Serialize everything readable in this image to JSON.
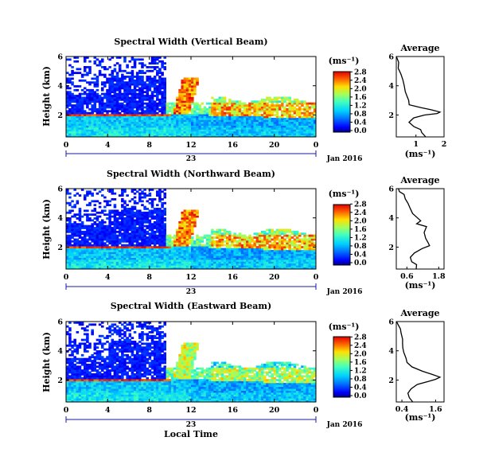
{
  "figure": {
    "xlabel": "Local Time",
    "date_label": "Jan 2016",
    "day_label": "23",
    "ylabel": "Height (km)",
    "avg_title": "Average",
    "avg_xlabel": "(ms⁻¹)",
    "cbar_unit": "(ms⁻¹)"
  },
  "chart_data": [
    {
      "type": "heatmap",
      "title": "Spectral Width (Vertical Beam)",
      "xlabel": "Local Time",
      "ylabel": "Height (km)",
      "x_ticks": [
        "0",
        "4",
        "8",
        "12",
        "16",
        "20",
        "0"
      ],
      "y_ticks": [
        "2",
        "4",
        "6"
      ],
      "xlim": [
        0,
        24
      ],
      "ylim": [
        0.5,
        6
      ],
      "colorbar": {
        "label": "(ms⁻¹)",
        "ticks": [
          "0.0",
          "0.4",
          "0.8",
          "1.2",
          "1.6",
          "2.0",
          "2.4",
          "2.8"
        ],
        "range": [
          0,
          2.8
        ]
      },
      "description_values": {
        "low_layer_width": 0.8,
        "high_layer_width": 2.6,
        "peak_height_km": 2.1
      },
      "average": {
        "title": "Average",
        "xlabel": "(ms⁻¹)",
        "x_ticks": [
          "1",
          "2"
        ],
        "y_ticks": [
          "2",
          "4",
          "6"
        ],
        "xlim": [
          0.3,
          2.0
        ],
        "ylim": [
          0.5,
          6
        ],
        "profile_x": [
          1.3,
          1.25,
          1.2,
          0.95,
          0.75,
          0.9,
          1.3,
          1.75,
          1.9,
          1.6,
          1.2,
          0.8,
          0.7,
          0.72,
          0.65,
          0.6,
          0.55,
          0.45,
          0.4,
          0.35,
          0.3
        ],
        "profile_h": [
          0.5,
          0.8,
          1.0,
          1.2,
          1.5,
          1.8,
          2.0,
          2.1,
          2.2,
          2.35,
          2.5,
          2.7,
          3.0,
          3.3,
          3.6,
          4.0,
          4.4,
          4.8,
          5.2,
          5.6,
          6.0
        ]
      }
    },
    {
      "type": "heatmap",
      "title": "Spectral Width (Northward Beam)",
      "xlabel": "Local Time",
      "ylabel": "Height (km)",
      "x_ticks": [
        "0",
        "4",
        "8",
        "12",
        "16",
        "20",
        "0"
      ],
      "y_ticks": [
        "2",
        "4",
        "6"
      ],
      "xlim": [
        0,
        24
      ],
      "ylim": [
        0.5,
        6
      ],
      "colorbar": {
        "label": "(ms⁻¹)",
        "ticks": [
          "0.0",
          "0.4",
          "0.8",
          "1.2",
          "1.6",
          "2.0",
          "2.4",
          "2.8"
        ],
        "range": [
          0,
          2.8
        ]
      },
      "average": {
        "title": "Average",
        "xlabel": "(ms⁻¹)",
        "x_ticks": [
          "0.6",
          "1.8"
        ],
        "y_ticks": [
          "2",
          "4",
          "6"
        ],
        "xlim": [
          0.2,
          2.0
        ],
        "ylim": [
          0.5,
          6
        ],
        "profile_x": [
          0.9,
          1.0,
          0.8,
          0.75,
          0.9,
          1.2,
          1.5,
          1.4,
          1.3,
          1.25,
          1.3,
          1.0,
          1.15,
          0.95,
          0.8,
          0.75,
          0.6,
          0.55,
          0.45,
          0.35,
          0.25
        ],
        "profile_h": [
          0.5,
          0.8,
          1.0,
          1.3,
          1.6,
          1.9,
          2.1,
          2.3,
          2.6,
          3.0,
          3.4,
          3.6,
          3.8,
          4.0,
          4.3,
          4.6,
          5.0,
          5.3,
          5.6,
          5.8,
          6.0
        ]
      }
    },
    {
      "type": "heatmap",
      "title": "Spectral Width (Eastward Beam)",
      "xlabel": "Local Time",
      "ylabel": "Height (km)",
      "x_ticks": [
        "0",
        "4",
        "8",
        "12",
        "16",
        "20",
        "0"
      ],
      "y_ticks": [
        "2",
        "4",
        "6"
      ],
      "xlim": [
        0,
        24
      ],
      "ylim": [
        0.5,
        6
      ],
      "colorbar": {
        "label": "(ms⁻¹)",
        "ticks": [
          "0.0",
          "0.4",
          "0.8",
          "1.2",
          "1.6",
          "2.0",
          "2.4",
          "2.8"
        ],
        "range": [
          0,
          2.8
        ]
      },
      "average": {
        "title": "Average",
        "xlabel": "(ms⁻¹)",
        "x_ticks": [
          "0.4",
          "1.6"
        ],
        "y_ticks": [
          "2",
          "4",
          "6"
        ],
        "xlim": [
          0.2,
          1.9
        ],
        "ylim": [
          0.5,
          6
        ],
        "profile_x": [
          0.8,
          0.7,
          0.65,
          0.75,
          0.95,
          1.3,
          1.6,
          1.75,
          1.5,
          1.1,
          0.75,
          0.6,
          0.55,
          0.5,
          0.45,
          0.42,
          0.38,
          0.33,
          0.3,
          0.28,
          0.25
        ],
        "profile_h": [
          0.5,
          0.8,
          1.1,
          1.4,
          1.7,
          1.9,
          2.05,
          2.2,
          2.4,
          2.6,
          2.9,
          3.2,
          3.5,
          3.9,
          4.2,
          4.5,
          4.8,
          5.2,
          5.5,
          5.8,
          6.0
        ]
      }
    }
  ]
}
